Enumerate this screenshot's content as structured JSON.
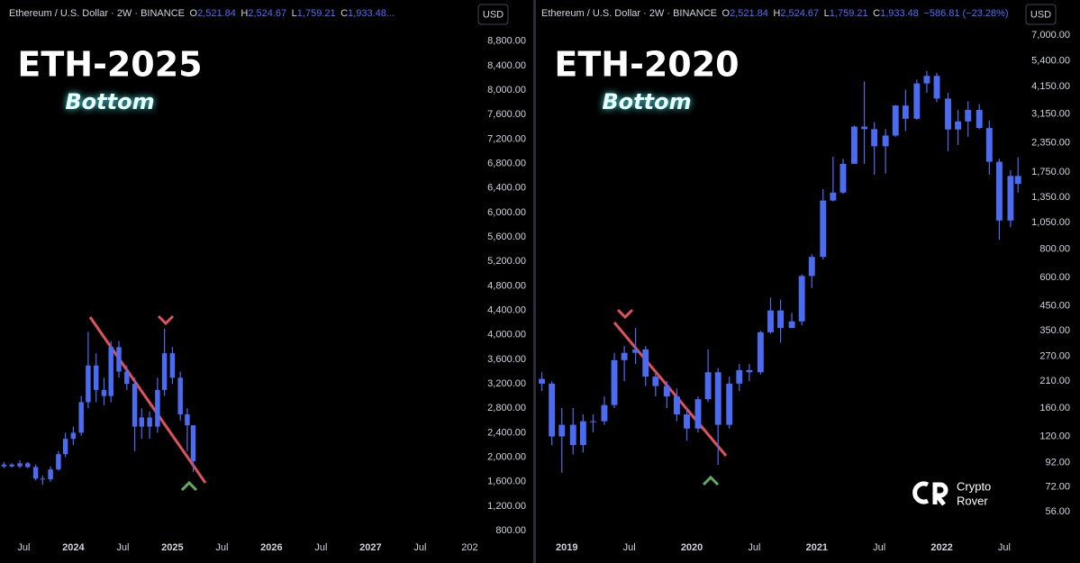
{
  "chart_data": [
    {
      "type": "candlestick",
      "title": "ETH-2025",
      "subtitle": "Bottom",
      "symbol": "Ethereum / U.S. Dollar · 2W · BINANCE",
      "ohlc": [
        {
          "label": "O",
          "value": "2,521.84"
        },
        {
          "label": "H",
          "value": "2,524.67"
        },
        {
          "label": "L",
          "value": "1,759.21"
        },
        {
          "label": "C",
          "value": "1,933.48..."
        }
      ],
      "currency": "USD",
      "color": "#4b6cf0",
      "log_scale": false,
      "grid": false,
      "x": [
        2023.3,
        2023.38,
        2023.46,
        2023.54,
        2023.62,
        2023.69,
        2023.77,
        2023.85,
        2023.92,
        2024.0,
        2024.08,
        2024.15,
        2024.23,
        2024.31,
        2024.38,
        2024.46,
        2024.54,
        2024.62,
        2024.69,
        2024.77,
        2024.85,
        2024.92,
        2025.0,
        2025.08,
        2025.15,
        2025.21
      ],
      "open": [
        1850,
        1880,
        1850,
        1900,
        1840,
        1650,
        1640,
        1800,
        2050,
        2300,
        2400,
        2900,
        3500,
        3100,
        3000,
        3800,
        3400,
        3200,
        2500,
        2650,
        2500,
        3100,
        3700,
        3300,
        2700,
        2521.84
      ],
      "high": [
        1920,
        1900,
        1950,
        1920,
        1880,
        1700,
        1850,
        2100,
        2400,
        2500,
        3000,
        4050,
        3700,
        3300,
        3900,
        3900,
        3500,
        3300,
        2800,
        2750,
        3300,
        4100,
        3800,
        3400,
        2800,
        2524.67
      ],
      "low": [
        1820,
        1830,
        1820,
        1820,
        1620,
        1550,
        1600,
        1780,
        2000,
        2200,
        2350,
        2800,
        2900,
        2850,
        2900,
        3300,
        3100,
        2100,
        2300,
        2300,
        2400,
        3000,
        3200,
        2600,
        2100,
        1759.21
      ],
      "close": [
        1880,
        1850,
        1900,
        1840,
        1650,
        1640,
        1800,
        2050,
        2300,
        2400,
        2900,
        3500,
        3100,
        3000,
        3800,
        3400,
        3200,
        2500,
        2650,
        2500,
        3100,
        3700,
        3300,
        2700,
        2521.84,
        1933.48
      ],
      "xlim": [
        2023.26,
        2028.06
      ],
      "xticks": [
        {
          "value": 2023.5,
          "label": "Jul"
        },
        2024,
        {
          "value": 2024.5,
          "label": "Jul"
        },
        2025,
        {
          "value": 2025.5,
          "label": "Jul"
        },
        2026,
        {
          "value": 2026.5,
          "label": "Jul"
        },
        2027,
        {
          "value": 2027.5,
          "label": "Jul"
        },
        {
          "value": 2028,
          "label": "202"
        }
      ],
      "ylim": [
        668,
        9475
      ],
      "yticks": [
        {
          "value": 800,
          "label": "800.00"
        },
        {
          "value": 1200,
          "label": "1,200.00"
        },
        {
          "value": 1600,
          "label": "1,600.00"
        },
        {
          "value": 2000,
          "label": "2,000.00"
        },
        {
          "value": 2400,
          "label": "2,400.00"
        },
        {
          "value": 2800,
          "label": "2,800.00"
        },
        {
          "value": 3200,
          "label": "3,200.00"
        },
        {
          "value": 3600,
          "label": "3,600.00"
        },
        {
          "value": 4000,
          "label": "4,000.00"
        },
        {
          "value": 4400,
          "label": "4,400.00"
        },
        {
          "value": 4800,
          "label": "4,800.00"
        },
        {
          "value": 5200,
          "label": "5,200.00"
        },
        {
          "value": 5600,
          "label": "5,600.00"
        },
        {
          "value": 6000,
          "label": "6,000.00"
        },
        {
          "value": 6400,
          "label": "6,400.00"
        },
        {
          "value": 6800,
          "label": "6,800.00"
        },
        {
          "value": 7200,
          "label": "7,200.00"
        },
        {
          "value": 7600,
          "label": "7,600.00"
        },
        {
          "value": 8000,
          "label": "8,000.00"
        },
        {
          "value": 8400,
          "label": "8,400.00"
        },
        {
          "value": 8800,
          "label": "8,800.00"
        }
      ]
    },
    {
      "type": "candlestick",
      "title": "ETH-2020",
      "subtitle": "Bottom",
      "symbol": "Ethereum / U.S. Dollar · 2W · BINANCE",
      "ohlc": [
        {
          "label": "O",
          "value": "2,521.84"
        },
        {
          "label": "H",
          "value": "2,524.67"
        },
        {
          "label": "L",
          "value": "1,759.21"
        },
        {
          "label": "C",
          "value": "1,933.48"
        }
      ],
      "change": "−586.81 (−23.28%)",
      "currency": "USD",
      "color": "#4b6cf0",
      "log_scale": true,
      "grid": false,
      "x": [
        2018.8,
        2018.88,
        2018.96,
        2019.05,
        2019.13,
        2019.21,
        2019.3,
        2019.38,
        2019.46,
        2019.55,
        2019.63,
        2019.71,
        2019.8,
        2019.88,
        2019.96,
        2020.05,
        2020.13,
        2020.21,
        2020.3,
        2020.38,
        2020.46,
        2020.55,
        2020.63,
        2020.71,
        2020.8,
        2020.88,
        2020.96,
        2021.05,
        2021.13,
        2021.21,
        2021.3,
        2021.38,
        2021.46,
        2021.55,
        2021.63,
        2021.71,
        2021.8,
        2021.88,
        2021.96,
        2022.05,
        2022.13,
        2022.21,
        2022.3,
        2022.38,
        2022.46,
        2022.55,
        2022.61
      ],
      "open": [
        215,
        205,
        120,
        135,
        110,
        140,
        140,
        165,
        260,
        280,
        290,
        220,
        200,
        180,
        150,
        130,
        175,
        230,
        135,
        205,
        235,
        230,
        345,
        430,
        360,
        385,
        610,
        740,
        1310,
        1420,
        1900,
        2770,
        2700,
        2270,
        2530,
        3430,
        3000,
        4290,
        4630,
        3680,
        2690,
        2920,
        3280,
        2730,
        1940,
        1070,
        1680
      ],
      "high": [
        230,
        210,
        160,
        160,
        150,
        150,
        180,
        280,
        300,
        360,
        300,
        230,
        210,
        195,
        160,
        180,
        290,
        240,
        220,
        250,
        250,
        350,
        490,
        480,
        420,
        620,
        760,
        1470,
        2040,
        2000,
        2800,
        4380,
        2900,
        2700,
        3450,
        4030,
        4460,
        4870,
        4780,
        3900,
        3280,
        3580,
        3480,
        2950,
        2000,
        1780,
        2030
      ],
      "low": [
        190,
        110,
        83,
        100,
        102,
        125,
        135,
        160,
        210,
        250,
        200,
        180,
        160,
        140,
        115,
        125,
        170,
        90,
        130,
        190,
        210,
        225,
        340,
        310,
        360,
        370,
        540,
        720,
        1300,
        1400,
        1900,
        1900,
        1700,
        1720,
        2500,
        2650,
        2970,
        3900,
        3550,
        2160,
        2300,
        2500,
        2700,
        1700,
        880,
        1000,
        1420
      ],
      "close": [
        205,
        120,
        135,
        110,
        140,
        140,
        165,
        260,
        280,
        290,
        220,
        200,
        180,
        150,
        130,
        175,
        230,
        135,
        205,
        235,
        230,
        345,
        430,
        360,
        385,
        610,
        740,
        1310,
        1420,
        1900,
        2770,
        2700,
        2270,
        2530,
        3430,
        3000,
        4290,
        4630,
        3680,
        2690,
        2920,
        3280,
        2730,
        1940,
        1070,
        1680,
        1550
      ],
      "xlim": [
        2018.76,
        2022.63
      ],
      "xticks": [
        2019,
        {
          "value": 2019.5,
          "label": "Jul"
        },
        2020,
        {
          "value": 2020.5,
          "label": "Jul"
        },
        2021,
        {
          "value": 2021.5,
          "label": "Jul"
        },
        2022,
        {
          "value": 2022.5,
          "label": "Jul"
        }
      ],
      "ylim": [
        42.6,
        9990
      ],
      "yticks": [
        {
          "value": 56,
          "label": "56.00"
        },
        {
          "value": 72,
          "label": "72.00"
        },
        {
          "value": 92,
          "label": "92.00"
        },
        {
          "value": 120,
          "label": "120.00"
        },
        {
          "value": 160,
          "label": "160.00"
        },
        {
          "value": 210,
          "label": "210.00"
        },
        {
          "value": 270,
          "label": "270.00"
        },
        {
          "value": 350,
          "label": "350.00"
        },
        {
          "value": 450,
          "label": "450.00"
        },
        {
          "value": 600,
          "label": "600.00"
        },
        {
          "value": 800,
          "label": "800.00"
        },
        {
          "value": 1050,
          "label": "1,050.00"
        },
        {
          "value": 1350,
          "label": "1,350.00"
        },
        {
          "value": 1750,
          "label": "1,750.00"
        },
        {
          "value": 2350,
          "label": "2,350.00"
        },
        {
          "value": 3150,
          "label": "3,150.00"
        },
        {
          "value": 4150,
          "label": "4,150.00"
        },
        {
          "value": 5400,
          "label": "5,400.00"
        },
        {
          "value": 7000,
          "label": "7,000.00"
        }
      ]
    }
  ],
  "watermark": [
    "Crypto",
    "Rover"
  ]
}
